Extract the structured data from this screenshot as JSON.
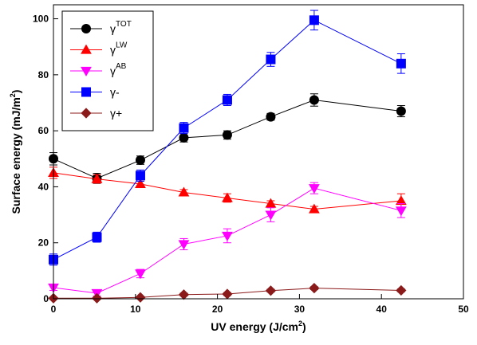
{
  "chart_data": {
    "type": "line",
    "xlabel": {
      "main": "UV energy (J/cm",
      "sup": "2",
      "end": ")"
    },
    "ylabel": {
      "main": "Surface energy (mJ/m",
      "sup": "2",
      "end": ")"
    },
    "xlim": [
      0,
      50
    ],
    "ylim": [
      0,
      105
    ],
    "xticks": [
      0,
      10,
      20,
      30,
      40,
      50
    ],
    "yticks": [
      0,
      20,
      40,
      60,
      80,
      100
    ],
    "grid": false,
    "legend_position": "top-left",
    "x": [
      0,
      5.3,
      10.6,
      15.9,
      21.2,
      26.5,
      31.8,
      42.4
    ],
    "series": [
      {
        "name": "γ",
        "name_sup": "TOT",
        "color": "#000000",
        "marker": "circle",
        "values": [
          50,
          43,
          49.5,
          57.5,
          58.5,
          65,
          71,
          67
        ],
        "errors": [
          2.2,
          1.8,
          1.5,
          1.5,
          1.5,
          1.2,
          2.2,
          2.0
        ]
      },
      {
        "name": "γ",
        "name_sup": "LW",
        "color": "#ff0000",
        "marker": "triangle-up",
        "values": [
          45,
          42.8,
          41,
          38,
          36,
          34,
          32,
          35
        ],
        "errors": [
          2.0,
          1.5,
          1.0,
          1.0,
          1.5,
          1.0,
          1.0,
          2.5
        ]
      },
      {
        "name": "γ",
        "name_sup": "AB",
        "color": "#ff00ff",
        "marker": "triangle-down",
        "values": [
          4,
          2,
          9,
          19.5,
          22.5,
          30,
          39.5,
          31.5
        ],
        "errors": [
          1.0,
          1.0,
          1.5,
          2.0,
          2.5,
          2.5,
          2.0,
          2.5
        ]
      },
      {
        "name": "γ-",
        "name_sup": "",
        "color": "#0000ff",
        "marker": "square",
        "values": [
          14,
          22,
          44,
          61,
          71,
          85.5,
          99.5,
          84
        ],
        "errors": [
          2.0,
          1.8,
          2.0,
          2.0,
          2.0,
          2.5,
          3.5,
          3.5
        ]
      },
      {
        "name": "γ+",
        "name_sup": "",
        "color": "#8b1a1a",
        "marker": "diamond",
        "values": [
          0.2,
          0.2,
          0.5,
          1.5,
          1.7,
          2.9,
          3.8,
          3.0
        ],
        "errors": [
          0,
          0,
          0,
          0.5,
          0.5,
          0.5,
          0.5,
          0.5
        ]
      }
    ]
  }
}
